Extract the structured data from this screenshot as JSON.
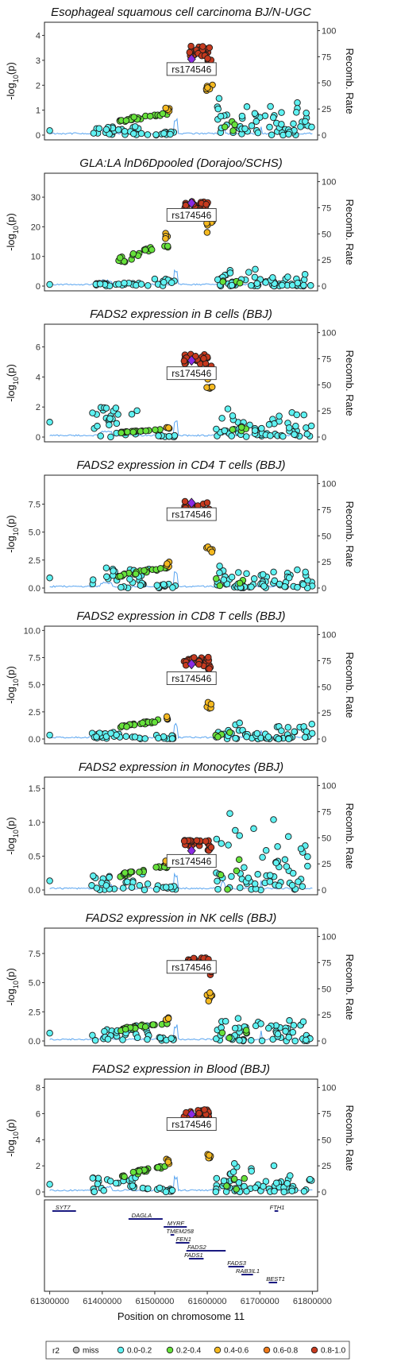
{
  "chart_data": {
    "type": "scatter",
    "x_label": "Position on chromosome 11",
    "x_ticks": [
      "61300000",
      "61400000",
      "61500000",
      "61600000",
      "61700000",
      "61800000"
    ],
    "x_values": [
      61300000,
      61400000,
      61500000,
      61600000,
      61700000,
      61800000
    ],
    "xlim": [
      61290000,
      61810000
    ],
    "y_label_left": "-log10(p)",
    "y_label_right": "Recomb. Rate",
    "right_ticks": [
      "0",
      "25",
      "50",
      "75",
      "100"
    ],
    "right_values": [
      0,
      25,
      50,
      75,
      100
    ],
    "lead_snp": "rs174546",
    "lead_pos": 61570000,
    "legend": {
      "title": "r2",
      "items": [
        {
          "label": "miss",
          "color": "#bfbfbf"
        },
        {
          "label": "0.0-0.2",
          "color": "#5ff2f2"
        },
        {
          "label": "0.2-0.4",
          "color": "#66e23b"
        },
        {
          "label": "0.4-0.6",
          "color": "#f5b920"
        },
        {
          "label": "0.6-0.8",
          "color": "#ee7a1a"
        },
        {
          "label": "0.8-1.0",
          "color": "#c63a1f"
        }
      ]
    },
    "panels": [
      {
        "title": "Esophageal squamous cell carcinoma BJ/N-UGC",
        "ymax": 4.4,
        "ticks": [
          0,
          1,
          2,
          3,
          4
        ],
        "tick_labels": [
          "0",
          "1",
          "2",
          "3",
          "4"
        ],
        "lead_y": 3.05,
        "label_y": 2.65,
        "hi": 3.5,
        "ld": 2.1,
        "gr": 0.9,
        "left": 0.4,
        "right": 1.4,
        "seed": 11
      },
      {
        "title": "GLA:LA lnD6Dpooled (Dorajoo/SCHS)",
        "ymax": 37,
        "ticks": [
          0,
          10,
          20,
          30
        ],
        "tick_labels": [
          "0",
          "10",
          "20",
          "30"
        ],
        "lead_y": 28,
        "label_y": 24,
        "hi": 28,
        "ld": 21,
        "gr": 14,
        "left": 1.2,
        "right": 5.5,
        "seed": 23
      },
      {
        "title": "FADS2 expression in B cells (BBJ)",
        "ymax": 7.3,
        "ticks": [
          0,
          2,
          4,
          6
        ],
        "tick_labels": [
          "0",
          "2",
          "4",
          "6"
        ],
        "lead_y": 5.1,
        "label_y": 4.25,
        "hi": 5.4,
        "ld": 3.7,
        "gr": 0.5,
        "left": 2.2,
        "right": 1.8,
        "seed": 37
      },
      {
        "title": "FADS2 expression in CD4 T cells (BBJ)",
        "ymax": 9.8,
        "ticks": [
          0,
          2.5,
          5,
          7.5
        ],
        "tick_labels": [
          "0.0",
          "2.5",
          "5.0",
          "7.5"
        ],
        "lead_y": 7.6,
        "label_y": 6.6,
        "hi": 7.6,
        "ld": 3.7,
        "gr": 1.8,
        "left": 2.0,
        "right": 2.1,
        "seed": 41
      },
      {
        "title": "FADS2 expression in CD8 T cells (BBJ)",
        "ymax": 10.1,
        "ticks": [
          0,
          2.5,
          5,
          7.5,
          10
        ],
        "tick_labels": [
          "0.0",
          "2.5",
          "5.0",
          "7.5",
          "10.0"
        ],
        "lead_y": 6.9,
        "label_y": 5.6,
        "hi": 7.4,
        "ld": 3.3,
        "gr": 1.8,
        "left": 0.8,
        "right": 1.5,
        "seed": 53
      },
      {
        "title": "FADS2 expression in Monocytes (BBJ)",
        "ymax": 1.62,
        "ticks": [
          0,
          0.5,
          1,
          1.5
        ],
        "tick_labels": [
          "0.0",
          "0.5",
          "1.0",
          "1.5"
        ],
        "lead_y": 0.58,
        "label_y": 0.43,
        "hi": 0.72,
        "ld": 0.45,
        "gr": 0.35,
        "left": 0.3,
        "right": 1.25,
        "seed": 67
      },
      {
        "title": "FADS2 expression in NK cells (BBJ)",
        "ymax": 9.4,
        "ticks": [
          0,
          2.5,
          5,
          7.5
        ],
        "tick_labels": [
          "0.0",
          "2.5",
          "5.0",
          "7.5"
        ],
        "lead_y": 6.6,
        "label_y": 6.35,
        "hi": 7.0,
        "ld": 4.0,
        "gr": 1.6,
        "left": 1.5,
        "right": 2.5,
        "seed": 71
      },
      {
        "title": "FADS2 expression in Blood (BBJ)",
        "ymax": 8.4,
        "ticks": [
          0,
          2,
          4,
          6,
          8
        ],
        "tick_labels": [
          "0",
          "2",
          "4",
          "6",
          "8"
        ],
        "lead_y": 5.95,
        "label_y": 5.2,
        "hi": 6.2,
        "ld": 3.0,
        "gr": 2.0,
        "left": 1.3,
        "right": 2.6,
        "seed": 83
      }
    ],
    "genes": [
      {
        "name": "SYT7",
        "start": 61305000,
        "end": 61350000,
        "row": 0,
        "label_x": 61325000
      },
      {
        "name": "DAGLA",
        "start": 61450000,
        "end": 61515000,
        "row": 1,
        "label_x": 61475000
      },
      {
        "name": "FTH1",
        "start": 61728000,
        "end": 61735000,
        "row": 0,
        "label_x": 61733000
      },
      {
        "name": "MYRF",
        "start": 61517000,
        "end": 61561000,
        "row": 2,
        "label_x": 61540000
      },
      {
        "name": "TMEM258",
        "start": 61530000,
        "end": 61537000,
        "row": 3,
        "label_x": 61548000
      },
      {
        "name": "FEN1",
        "start": 61540000,
        "end": 61566000,
        "row": 4,
        "label_x": 61555000
      },
      {
        "name": "FADS2",
        "start": 61560000,
        "end": 61635000,
        "row": 5,
        "label_x": 61580000
      },
      {
        "name": "FADS1",
        "start": 61565000,
        "end": 61593000,
        "row": 6,
        "label_x": 61574000
      },
      {
        "name": "FADS3",
        "start": 61640000,
        "end": 61670000,
        "row": 7,
        "label_x": 61656000
      },
      {
        "name": "RAB3IL1",
        "start": 61665000,
        "end": 61687000,
        "row": 8,
        "label_x": 61677000
      },
      {
        "name": "BEST1",
        "start": 61717000,
        "end": 61733000,
        "row": 9,
        "label_x": 61730000
      }
    ]
  }
}
